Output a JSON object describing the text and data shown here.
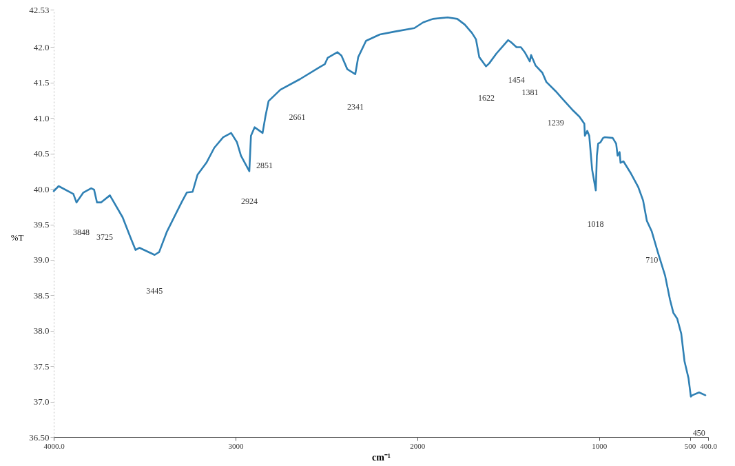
{
  "chart_data": {
    "type": "line",
    "xlabel": "cm⁻¹",
    "ylabel": "%T",
    "xlim": [
      4000,
      400
    ],
    "xticks": [
      {
        "value": 4000,
        "label": "4000.0"
      },
      3000,
      2000,
      1000,
      500,
      {
        "value": 400,
        "label": "400.0"
      }
    ],
    "ylim": [
      36.5,
      42.53
    ],
    "yticks": [
      {
        "value": 36.5,
        "label": "36.50"
      },
      {
        "value": 37,
        "label": "37.0"
      },
      37.5,
      {
        "value": 38,
        "label": "38.0"
      },
      38.5,
      {
        "value": 39,
        "label": "39.0"
      },
      39.5,
      {
        "value": 40,
        "label": "40.0"
      },
      40.5,
      {
        "value": 41,
        "label": "41.0"
      },
      41.5,
      {
        "value": 42,
        "label": "42.0"
      },
      42.53
    ],
    "grid": false,
    "line_style": "solid",
    "marker": "none",
    "series": [
      {
        "color": "#2f80b4",
        "x": [
          4000,
          3973,
          3892,
          3875,
          3837,
          3794,
          3778,
          3762,
          3740,
          3691,
          3621,
          3577,
          3550,
          3528,
          3445,
          3420,
          3377,
          3295,
          3268,
          3236,
          3209,
          3160,
          3117,
          3068,
          3024,
          2992,
          2970,
          2924,
          2915,
          2895,
          2851,
          2835,
          2818,
          2753,
          2645,
          2537,
          2509,
          2493,
          2439,
          2417,
          2385,
          2341,
          2325,
          2282,
          2206,
          2125,
          2016,
          1968,
          1914,
          1833,
          1780,
          1739,
          1699,
          1677,
          1659,
          1622,
          1605,
          1565,
          1524,
          1500,
          1484,
          1454,
          1430,
          1409,
          1398,
          1381,
          1374,
          1349,
          1312,
          1290,
          1239,
          1204,
          1148,
          1108,
          1081,
          1078,
          1065,
          1054,
          1038,
          1018,
          1012,
          1005,
          992,
          978,
          968,
          925,
          906,
          898,
          887,
          882,
          866,
          825,
          785,
          758,
          737,
          710,
          677,
          637,
          610,
          591,
          570,
          548,
          530,
          508,
          495,
          487,
          450,
          415
        ],
        "values": [
          39.97,
          40.04,
          39.93,
          39.81,
          39.95,
          40.01,
          39.99,
          39.81,
          39.81,
          39.91,
          39.6,
          39.31,
          39.14,
          39.17,
          39.07,
          39.11,
          39.4,
          39.82,
          39.95,
          39.96,
          40.2,
          40.37,
          40.58,
          40.73,
          40.79,
          40.66,
          40.47,
          40.25,
          40.75,
          40.87,
          40.79,
          41.03,
          41.24,
          41.4,
          41.55,
          41.72,
          41.76,
          41.85,
          41.93,
          41.88,
          41.69,
          41.62,
          41.86,
          42.09,
          42.18,
          42.22,
          42.27,
          42.35,
          42.4,
          42.42,
          42.4,
          42.32,
          42.2,
          42.11,
          41.86,
          41.73,
          41.77,
          41.91,
          42.03,
          42.1,
          42.07,
          42.0,
          42.0,
          41.93,
          41.88,
          41.8,
          41.89,
          41.74,
          41.64,
          41.51,
          41.38,
          41.28,
          41.12,
          41.02,
          40.92,
          40.75,
          40.82,
          40.75,
          40.27,
          39.98,
          40.47,
          40.64,
          40.66,
          40.72,
          40.73,
          40.72,
          40.64,
          40.47,
          40.52,
          40.37,
          40.39,
          40.22,
          40.03,
          39.84,
          39.55,
          39.4,
          39.11,
          38.78,
          38.44,
          38.25,
          38.17,
          37.96,
          37.57,
          37.33,
          37.07,
          37.09,
          37.13,
          37.09
        ]
      }
    ],
    "annotations": [
      "3848",
      "3725",
      "3445",
      "2924",
      "2851",
      "2661",
      "2341",
      "1622",
      "1454",
      "1381",
      "1239",
      "1018",
      "710",
      "450"
    ]
  }
}
